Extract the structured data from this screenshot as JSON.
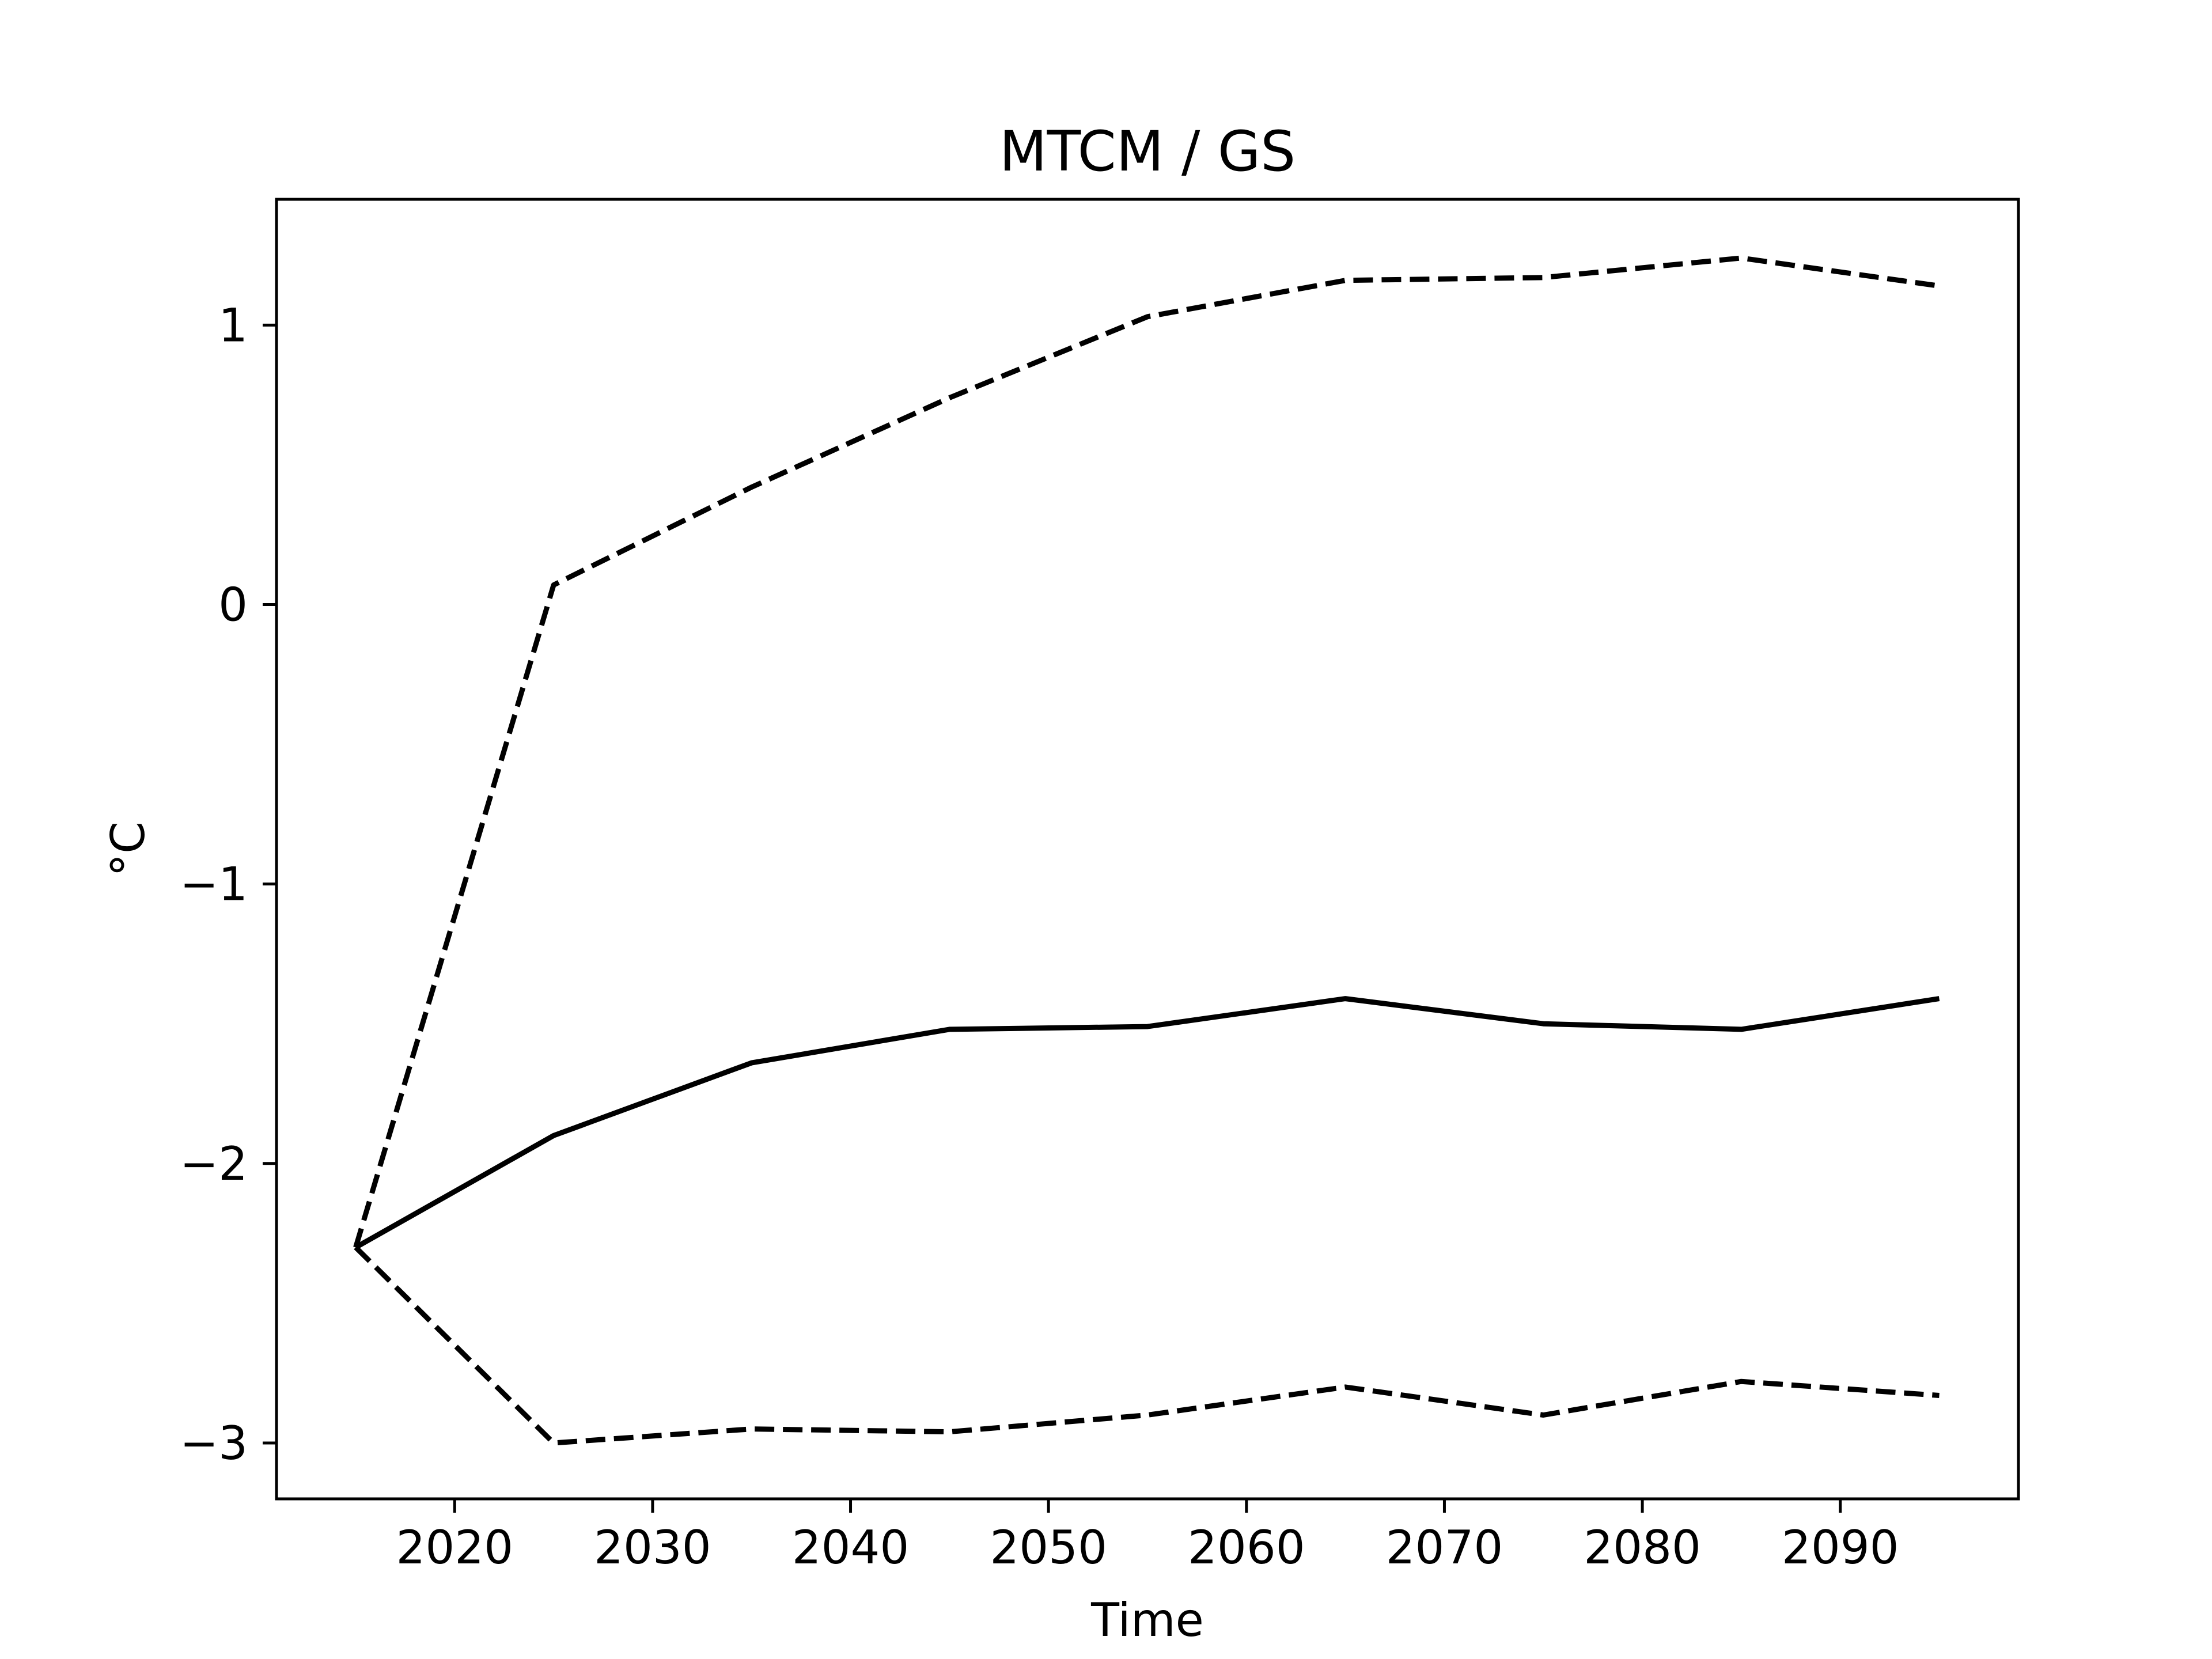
{
  "chart_data": {
    "type": "line",
    "title": "MTCM / GS",
    "xlabel": "Time",
    "ylabel": "°C",
    "x": [
      2015,
      2025,
      2035,
      2045,
      2055,
      2065,
      2075,
      2085,
      2095
    ],
    "xlim": [
      2011,
      2099
    ],
    "ylim": [
      -3.2,
      1.45
    ],
    "xticks": [
      2020,
      2030,
      2040,
      2050,
      2060,
      2070,
      2080,
      2090
    ],
    "xtick_labels": [
      "2020",
      "2030",
      "2040",
      "2050",
      "2060",
      "2070",
      "2080",
      "2090"
    ],
    "yticks": [
      -3,
      -2,
      -1,
      0,
      1
    ],
    "ytick_labels": [
      "−3",
      "−2",
      "−1",
      "0",
      "1"
    ],
    "grid": false,
    "legend": "none",
    "series": [
      {
        "style": "solid",
        "color": "#000000",
        "values": [
          -2.3,
          -1.9,
          -1.64,
          -1.52,
          -1.51,
          -1.41,
          -1.5,
          -1.52,
          -1.41
        ]
      },
      {
        "style": "dashed",
        "color": "#000000",
        "values": [
          -2.3,
          0.07,
          0.42,
          0.74,
          1.03,
          1.16,
          1.17,
          1.24,
          1.14
        ]
      },
      {
        "style": "dashed",
        "color": "#000000",
        "values": [
          -2.3,
          -3.0,
          -2.95,
          -2.96,
          -2.9,
          -2.8,
          -2.9,
          -2.78,
          -2.83
        ]
      }
    ]
  }
}
